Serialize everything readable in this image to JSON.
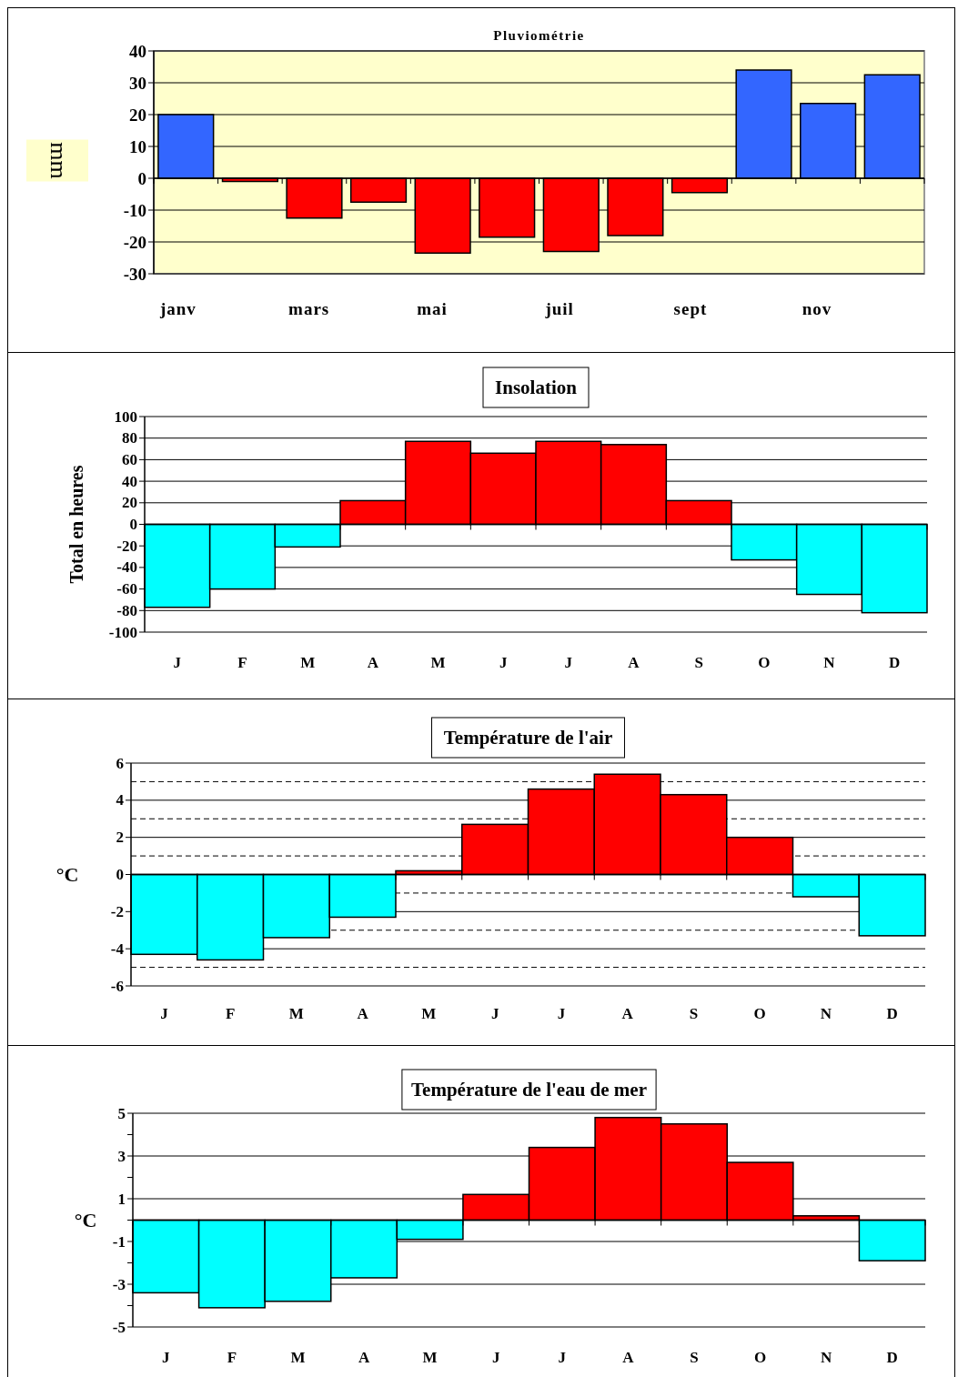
{
  "chart_data": [
    {
      "type": "bar",
      "title": "Pluviométrie",
      "ylabel": "mm",
      "categories": [
        "janv",
        null,
        "mars",
        null,
        "mai",
        null,
        "juil",
        null,
        "sept",
        null,
        "nov",
        null
      ],
      "values": [
        20,
        -1,
        -12.5,
        -7.5,
        -23.5,
        -18.5,
        -23,
        -18,
        -4.5,
        34,
        23.5,
        32.5
      ],
      "colors": [
        "#3366ff",
        "#ff0000",
        "#ff0000",
        "#ff0000",
        "#ff0000",
        "#ff0000",
        "#ff0000",
        "#ff0000",
        "#ff0000",
        "#3366ff",
        "#3366ff",
        "#3366ff"
      ],
      "ylim": [
        -30,
        40
      ],
      "yticks": [
        -30,
        -20,
        -10,
        0,
        10,
        20,
        30,
        40
      ],
      "grid": "y"
    },
    {
      "type": "bar",
      "title": "Insolation",
      "ylabel": "Total en heures",
      "categories": [
        "J",
        "F",
        "M",
        "A",
        "M",
        "J",
        "J",
        "A",
        "S",
        "O",
        "N",
        "D"
      ],
      "values": [
        -77,
        -60,
        -21,
        22,
        77,
        66,
        77,
        74,
        22,
        -33,
        -65,
        -82
      ],
      "colors": [
        "#00ffff",
        "#00ffff",
        "#00ffff",
        "#ff0000",
        "#ff0000",
        "#ff0000",
        "#ff0000",
        "#ff0000",
        "#ff0000",
        "#00ffff",
        "#00ffff",
        "#00ffff"
      ],
      "ylim": [
        -100,
        100
      ],
      "yticks": [
        -100,
        -80,
        -60,
        -40,
        -20,
        0,
        20,
        40,
        60,
        80,
        100
      ],
      "grid": "y"
    },
    {
      "type": "bar",
      "title": "Température de l'air",
      "ylabel": "°C",
      "categories": [
        "J",
        "F",
        "M",
        "A",
        "M",
        "J",
        "J",
        "A",
        "S",
        "O",
        "N",
        "D"
      ],
      "values": [
        -4.3,
        -4.6,
        -3.4,
        -2.3,
        0.2,
        2.7,
        4.6,
        5.4,
        4.3,
        2.0,
        -1.2,
        -3.3
      ],
      "colors": [
        "#00ffff",
        "#00ffff",
        "#00ffff",
        "#00ffff",
        "#ff0000",
        "#ff0000",
        "#ff0000",
        "#ff0000",
        "#ff0000",
        "#ff0000",
        "#00ffff",
        "#00ffff"
      ],
      "ylim": [
        -6,
        6
      ],
      "yticks": [
        -6,
        -4,
        -2,
        0,
        2,
        4,
        6
      ],
      "grid": "y",
      "ref_lines": [
        {
          "axis": "y",
          "value": 5,
          "line_style": "dashed"
        },
        {
          "axis": "y",
          "value": 3,
          "line_style": "dashed"
        },
        {
          "axis": "y",
          "value": 1,
          "line_style": "dashed"
        },
        {
          "axis": "y",
          "value": -1,
          "line_style": "dashed"
        },
        {
          "axis": "y",
          "value": -3,
          "line_style": "dashed"
        },
        {
          "axis": "y",
          "value": -5,
          "line_style": "dashed"
        }
      ]
    },
    {
      "type": "bar",
      "title": "Température de l'eau de mer",
      "ylabel": "°C",
      "categories": [
        "J",
        "F",
        "M",
        "A",
        "M",
        "J",
        "J",
        "A",
        "S",
        "O",
        "N",
        "D"
      ],
      "values": [
        -3.4,
        -4.1,
        -3.8,
        -2.7,
        -0.9,
        1.2,
        3.4,
        4.8,
        4.5,
        2.7,
        0.2,
        -1.9
      ],
      "colors": [
        "#00ffff",
        "#00ffff",
        "#00ffff",
        "#00ffff",
        "#00ffff",
        "#ff0000",
        "#ff0000",
        "#ff0000",
        "#ff0000",
        "#ff0000",
        "#ff0000",
        "#00ffff"
      ],
      "ylim": [
        -5,
        5
      ],
      "yticks": [
        -5,
        {
          "value": -4,
          "label": null
        },
        -3,
        {
          "value": -2,
          "label": null
        },
        -1,
        {
          "value": 0,
          "label": null
        },
        1,
        {
          "value": 2,
          "label": null
        },
        3,
        {
          "value": 4,
          "label": null
        },
        5
      ],
      "grid": "y"
    }
  ]
}
